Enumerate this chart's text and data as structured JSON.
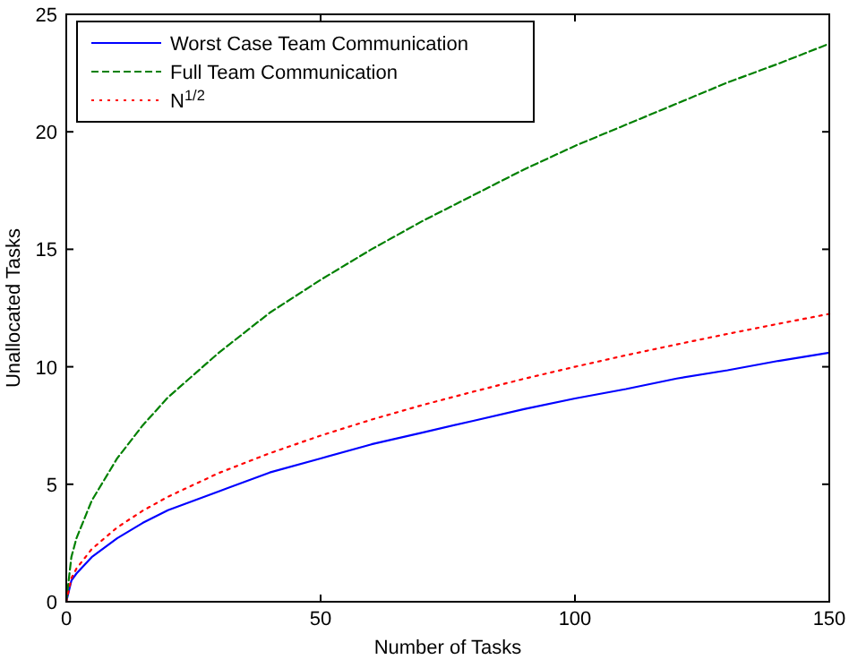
{
  "chart_data": {
    "type": "line",
    "xlabel": "Number of Tasks",
    "ylabel": "Unallocated Tasks",
    "x": [
      0,
      1,
      2,
      5,
      10,
      15,
      20,
      30,
      40,
      50,
      60,
      70,
      80,
      90,
      100,
      110,
      120,
      130,
      140,
      150
    ],
    "xlim": [
      0,
      150
    ],
    "xticks": [
      0,
      50,
      100,
      150
    ],
    "ylim": [
      0,
      25
    ],
    "yticks": [
      0,
      5,
      10,
      15,
      20,
      25
    ],
    "grid": false,
    "legend": "top left",
    "marker": "none",
    "series": [
      {
        "name": "Worst Case Team Communication",
        "color": "#0000ff",
        "line_style": "solid",
        "values": [
          0,
          0.9,
          1.2,
          1.9,
          2.7,
          3.35,
          3.9,
          4.7,
          5.5,
          6.1,
          6.7,
          7.2,
          7.7,
          8.2,
          8.65,
          9.05,
          9.5,
          9.85,
          10.25,
          10.6
        ]
      },
      {
        "name": "Full Team Communication",
        "color": "#008000",
        "line_style": "dashed",
        "values": [
          0,
          1.9,
          2.7,
          4.3,
          6.1,
          7.5,
          8.7,
          10.6,
          12.3,
          13.7,
          15.0,
          16.2,
          17.3,
          18.4,
          19.4,
          20.3,
          21.2,
          22.1,
          22.9,
          23.75
        ]
      },
      {
        "name": "N$^{1/2}$",
        "color": "#ff0000",
        "line_style": "dotted",
        "values": [
          0,
          1,
          1.41,
          2.24,
          3.16,
          3.87,
          4.47,
          5.48,
          6.32,
          7.07,
          7.75,
          8.37,
          8.94,
          9.49,
          10,
          10.49,
          10.95,
          11.4,
          11.83,
          12.25
        ]
      }
    ]
  }
}
